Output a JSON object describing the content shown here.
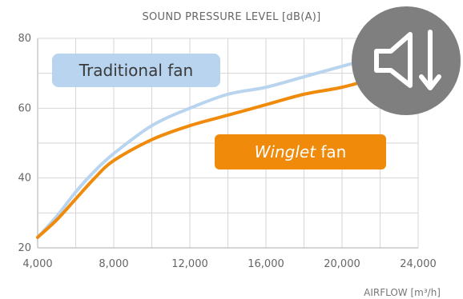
{
  "chart_data": {
    "type": "line",
    "title": "SOUND PRESSURE LEVEL [dB(A)]",
    "xlabel": "AIRFLOW [m³/h]",
    "ylabel": "",
    "xlim": [
      4000,
      24000
    ],
    "ylim": [
      20,
      80
    ],
    "x_ticks": [
      "4,000",
      "8,000",
      "12,000",
      "16,000",
      "20,000",
      "24,000"
    ],
    "y_ticks": [
      "20",
      "40",
      "60",
      "80"
    ],
    "x_tick_values": [
      4000,
      8000,
      12000,
      16000,
      20000,
      24000
    ],
    "y_tick_values": [
      20,
      40,
      60,
      80
    ],
    "grid": true,
    "series": [
      {
        "name": "Traditional fan",
        "color": "#b9d4ee",
        "x": [
          4000,
          5000,
          6000,
          7000,
          8000,
          10000,
          12000,
          14000,
          16000,
          18000,
          20000,
          22000
        ],
        "values": [
          23,
          29,
          36,
          42,
          47,
          55,
          60,
          64,
          66,
          69,
          72,
          75
        ]
      },
      {
        "name": "Winglet fan",
        "name_italic": "Winglet",
        "name_rest": " fan",
        "color": "#f08a0a",
        "x": [
          4000,
          5000,
          6000,
          7000,
          8000,
          10000,
          12000,
          14000,
          16000,
          18000,
          20000,
          22000
        ],
        "values": [
          23,
          28,
          34,
          40,
          45,
          51,
          55,
          58,
          61,
          64,
          66,
          69
        ]
      }
    ]
  },
  "legend": {
    "traditional_bg": "#b9d4ee",
    "winglet_bg": "#f08a0a"
  },
  "icon": {
    "name": "volume-down-icon",
    "color": "#7f7f7f"
  }
}
